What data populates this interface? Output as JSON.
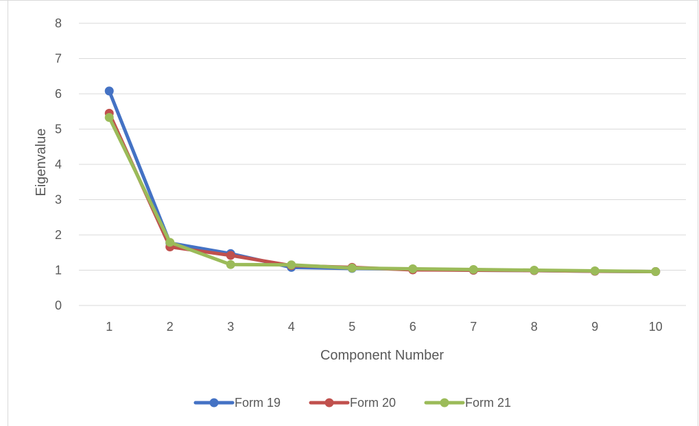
{
  "chart_data": {
    "type": "line",
    "title": "",
    "xlabel": "Component Number",
    "ylabel": "Eigenvalue",
    "x": [
      1,
      2,
      3,
      4,
      5,
      6,
      7,
      8,
      9,
      10
    ],
    "x_tick_labels": [
      "1",
      "2",
      "3",
      "4",
      "5",
      "6",
      "7",
      "8",
      "9",
      "10"
    ],
    "y_tick_labels": [
      "0",
      "1",
      "2",
      "3",
      "4",
      "5",
      "6",
      "7",
      "8"
    ],
    "ylim": [
      0,
      8
    ],
    "grid": "horizontal",
    "legend_position": "bottom",
    "series": [
      {
        "name": "Form 19",
        "color": "#4472c4",
        "values": [
          6.08,
          1.77,
          1.47,
          1.08,
          1.05,
          1.03,
          1.0,
          0.99,
          0.97,
          0.96
        ]
      },
      {
        "name": "Form 20",
        "color": "#c0504d",
        "values": [
          5.45,
          1.66,
          1.42,
          1.13,
          1.08,
          1.01,
          1.0,
          0.99,
          0.97,
          0.96
        ]
      },
      {
        "name": "Form 21",
        "color": "#9bbb59",
        "values": [
          5.33,
          1.79,
          1.16,
          1.15,
          1.06,
          1.04,
          1.02,
          1.0,
          0.98,
          0.96
        ]
      }
    ]
  }
}
